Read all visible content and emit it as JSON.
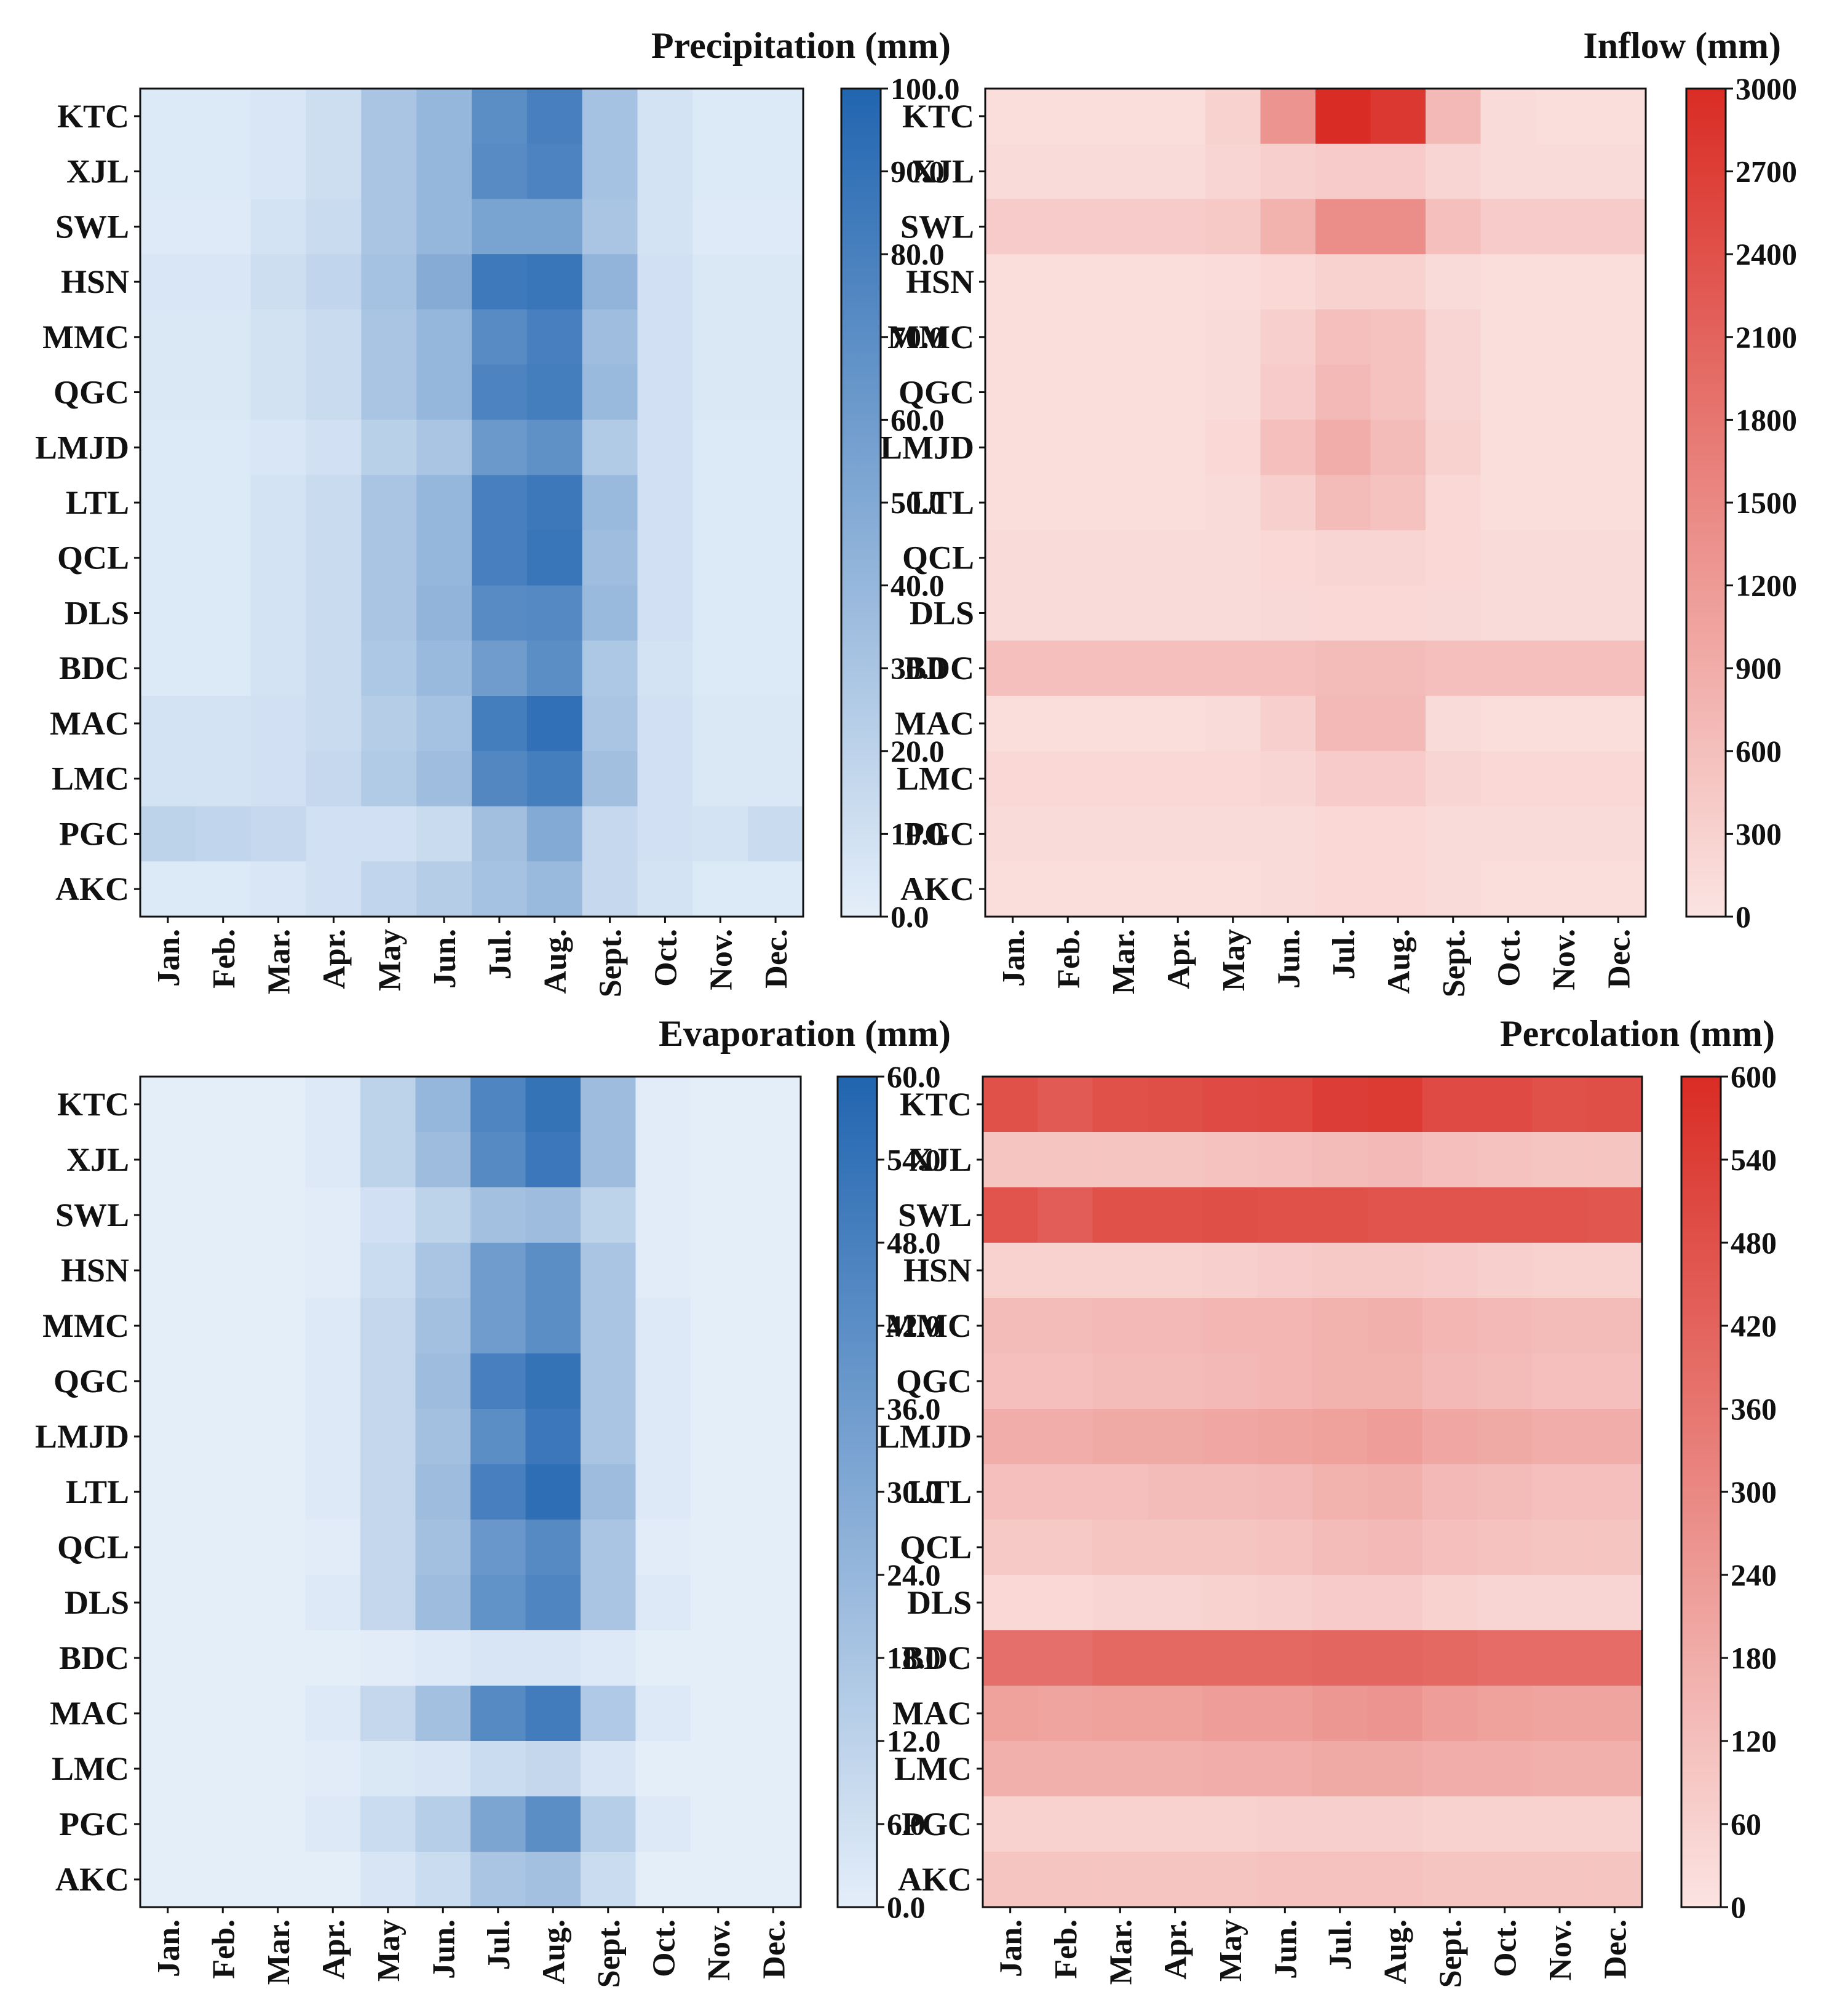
{
  "figure": {
    "rows": [
      "KTC",
      "XJL",
      "SWL",
      "HSN",
      "MMC",
      "QGC",
      "LMJD",
      "LTL",
      "QCL",
      "DLS",
      "BDC",
      "MAC",
      "LMC",
      "PGC",
      "AKC"
    ],
    "months": [
      "Jan.",
      "Feb.",
      "Mar.",
      "Apr.",
      "May",
      "Jun.",
      "Jul.",
      "Aug.",
      "Sept.",
      "Oct.",
      "Nov.",
      "Dec."
    ]
  },
  "chart_data": [
    {
      "type": "heatmap",
      "id": "precip",
      "title": "Precipitation (mm)",
      "colormap": "blues",
      "color_min": "#e4eef9",
      "color_max": "#2165b0",
      "vmin": 0,
      "vmax": 100,
      "colorbar_ticks": [
        "0.0",
        "10.0",
        "20.0",
        "30.0",
        "40.0",
        "50.0",
        "60.0",
        "70.0",
        "80.0",
        "90.0",
        "100.0"
      ],
      "values": [
        [
          4,
          4,
          6,
          12,
          30,
          40,
          70,
          80,
          32,
          8,
          4,
          4
        ],
        [
          4,
          4,
          6,
          12,
          30,
          40,
          72,
          78,
          32,
          8,
          4,
          4
        ],
        [
          3,
          3,
          8,
          14,
          30,
          40,
          55,
          55,
          30,
          8,
          3,
          3
        ],
        [
          6,
          6,
          12,
          18,
          32,
          48,
          85,
          88,
          42,
          10,
          5,
          5
        ],
        [
          5,
          5,
          9,
          14,
          30,
          40,
          72,
          80,
          36,
          10,
          5,
          5
        ],
        [
          5,
          5,
          9,
          14,
          30,
          40,
          78,
          82,
          38,
          10,
          5,
          5
        ],
        [
          4,
          4,
          6,
          10,
          22,
          30,
          62,
          68,
          26,
          10,
          4,
          4
        ],
        [
          4,
          4,
          8,
          14,
          30,
          40,
          80,
          86,
          38,
          10,
          4,
          4
        ],
        [
          4,
          4,
          8,
          14,
          30,
          40,
          80,
          88,
          36,
          10,
          4,
          4
        ],
        [
          4,
          4,
          8,
          14,
          30,
          42,
          72,
          74,
          38,
          10,
          4,
          4
        ],
        [
          4,
          4,
          8,
          14,
          28,
          38,
          60,
          70,
          28,
          8,
          4,
          4
        ],
        [
          8,
          8,
          10,
          14,
          24,
          32,
          82,
          92,
          30,
          10,
          5,
          5
        ],
        [
          8,
          8,
          10,
          16,
          26,
          36,
          75,
          82,
          34,
          10,
          5,
          5
        ],
        [
          20,
          18,
          16,
          10,
          10,
          14,
          34,
          50,
          16,
          10,
          8,
          14
        ],
        [
          4,
          4,
          6,
          10,
          18,
          24,
          32,
          38,
          16,
          8,
          4,
          4
        ]
      ]
    },
    {
      "type": "heatmap",
      "id": "inflow",
      "title": "Inflow (mm)",
      "colormap": "reds",
      "color_min": "#fbe4e2",
      "color_max": "#d92c24",
      "vmin": 0,
      "vmax": 3000,
      "colorbar_ticks": [
        "0",
        "300",
        "600",
        "900",
        "1200",
        "1500",
        "1800",
        "2100",
        "2400",
        "2700",
        "3000"
      ],
      "values": [
        [
          100,
          100,
          100,
          100,
          300,
          1300,
          3000,
          2800,
          700,
          150,
          100,
          100
        ],
        [
          150,
          150,
          150,
          150,
          250,
          350,
          400,
          400,
          250,
          150,
          150,
          150
        ],
        [
          400,
          400,
          400,
          400,
          450,
          800,
          1400,
          1400,
          600,
          400,
          400,
          400
        ],
        [
          100,
          100,
          100,
          100,
          120,
          200,
          300,
          300,
          150,
          100,
          100,
          100
        ],
        [
          100,
          100,
          100,
          100,
          150,
          350,
          600,
          550,
          250,
          100,
          100,
          100
        ],
        [
          100,
          100,
          100,
          100,
          150,
          400,
          700,
          550,
          250,
          100,
          100,
          100
        ],
        [
          100,
          100,
          100,
          100,
          200,
          600,
          900,
          650,
          300,
          100,
          100,
          100
        ],
        [
          100,
          100,
          100,
          100,
          150,
          350,
          650,
          550,
          200,
          100,
          100,
          100
        ],
        [
          150,
          150,
          150,
          150,
          150,
          200,
          250,
          250,
          200,
          150,
          150,
          150
        ],
        [
          150,
          150,
          150,
          150,
          150,
          180,
          200,
          200,
          180,
          150,
          150,
          150
        ],
        [
          600,
          600,
          600,
          600,
          600,
          600,
          650,
          650,
          600,
          600,
          600,
          600
        ],
        [
          100,
          100,
          100,
          100,
          150,
          350,
          700,
          700,
          150,
          100,
          100,
          100
        ],
        [
          200,
          200,
          200,
          200,
          200,
          250,
          400,
          400,
          250,
          200,
          200,
          200
        ],
        [
          150,
          150,
          150,
          150,
          150,
          150,
          200,
          200,
          150,
          150,
          150,
          150
        ],
        [
          100,
          100,
          100,
          100,
          100,
          150,
          200,
          200,
          150,
          100,
          100,
          100
        ]
      ]
    },
    {
      "type": "heatmap",
      "id": "evap",
      "title": "Evaporation (mm)",
      "colormap": "blues",
      "color_min": "#e4eef9",
      "color_max": "#2165b0",
      "vmin": 0,
      "vmax": 60,
      "colorbar_ticks": [
        "0.0",
        "6.0",
        "12.0",
        "18.0",
        "24.0",
        "30.0",
        "36.0",
        "42.0",
        "48.0",
        "54.0",
        "60.0"
      ],
      "values": [
        [
          0,
          0,
          0,
          2,
          12,
          24,
          46,
          54,
          22,
          1,
          0,
          0
        ],
        [
          0,
          0,
          0,
          2,
          12,
          22,
          44,
          52,
          22,
          1,
          0,
          0
        ],
        [
          0,
          0,
          0,
          1,
          6,
          12,
          20,
          22,
          12,
          1,
          0,
          0
        ],
        [
          0,
          0,
          0,
          1,
          8,
          18,
          36,
          42,
          18,
          1,
          0,
          0
        ],
        [
          0,
          0,
          0,
          2,
          10,
          20,
          36,
          42,
          18,
          2,
          0,
          0
        ],
        [
          0,
          0,
          0,
          2,
          10,
          22,
          48,
          54,
          18,
          2,
          0,
          0
        ],
        [
          0,
          0,
          0,
          2,
          10,
          20,
          42,
          52,
          18,
          2,
          0,
          0
        ],
        [
          0,
          0,
          0,
          2,
          10,
          22,
          48,
          56,
          22,
          2,
          0,
          0
        ],
        [
          0,
          0,
          0,
          1,
          10,
          20,
          38,
          44,
          18,
          1,
          0,
          0
        ],
        [
          0,
          0,
          0,
          2,
          10,
          22,
          40,
          46,
          18,
          2,
          0,
          0
        ],
        [
          0,
          0,
          0,
          0,
          1,
          2,
          4,
          4,
          2,
          0,
          0,
          0
        ],
        [
          0,
          0,
          0,
          2,
          10,
          20,
          44,
          50,
          16,
          2,
          0,
          0
        ],
        [
          0,
          0,
          0,
          1,
          3,
          4,
          8,
          10,
          4,
          0,
          0,
          0
        ],
        [
          0,
          0,
          0,
          2,
          8,
          14,
          32,
          42,
          14,
          2,
          0,
          0
        ],
        [
          0,
          0,
          0,
          0,
          4,
          8,
          18,
          20,
          8,
          0,
          0,
          0
        ]
      ]
    },
    {
      "type": "heatmap",
      "id": "perc",
      "title": "Percolation (mm)",
      "colormap": "reds",
      "color_min": "#fbe4e2",
      "color_max": "#d92c24",
      "vmin": 0,
      "vmax": 600,
      "colorbar_ticks": [
        "0",
        "60",
        "120",
        "180",
        "240",
        "300",
        "360",
        "420",
        "480",
        "540",
        "600"
      ],
      "values": [
        [
          480,
          450,
          480,
          490,
          500,
          510,
          540,
          550,
          500,
          500,
          480,
          490
        ],
        [
          100,
          100,
          100,
          100,
          110,
          120,
          130,
          140,
          120,
          110,
          100,
          100
        ],
        [
          470,
          440,
          480,
          480,
          490,
          480,
          480,
          470,
          470,
          470,
          470,
          460
        ],
        [
          60,
          60,
          60,
          60,
          70,
          80,
          90,
          90,
          80,
          70,
          60,
          60
        ],
        [
          130,
          130,
          140,
          140,
          150,
          150,
          160,
          170,
          150,
          140,
          130,
          130
        ],
        [
          120,
          120,
          130,
          130,
          140,
          150,
          160,
          160,
          140,
          130,
          120,
          120
        ],
        [
          180,
          180,
          190,
          190,
          200,
          210,
          220,
          230,
          200,
          190,
          180,
          180
        ],
        [
          120,
          120,
          120,
          130,
          130,
          140,
          160,
          170,
          140,
          130,
          120,
          120
        ],
        [
          90,
          90,
          100,
          100,
          100,
          110,
          130,
          140,
          120,
          110,
          100,
          100
        ],
        [
          40,
          40,
          50,
          50,
          60,
          70,
          80,
          80,
          60,
          50,
          50,
          50
        ],
        [
          380,
          380,
          400,
          400,
          400,
          400,
          410,
          410,
          400,
          390,
          390,
          390
        ],
        [
          220,
          210,
          220,
          220,
          230,
          230,
          250,
          260,
          230,
          220,
          210,
          210
        ],
        [
          170,
          170,
          170,
          170,
          180,
          180,
          190,
          190,
          180,
          180,
          170,
          170
        ],
        [
          60,
          60,
          60,
          60,
          60,
          70,
          70,
          70,
          60,
          60,
          60,
          60
        ],
        [
          100,
          100,
          100,
          100,
          100,
          110,
          110,
          110,
          100,
          100,
          100,
          100
        ]
      ]
    }
  ]
}
